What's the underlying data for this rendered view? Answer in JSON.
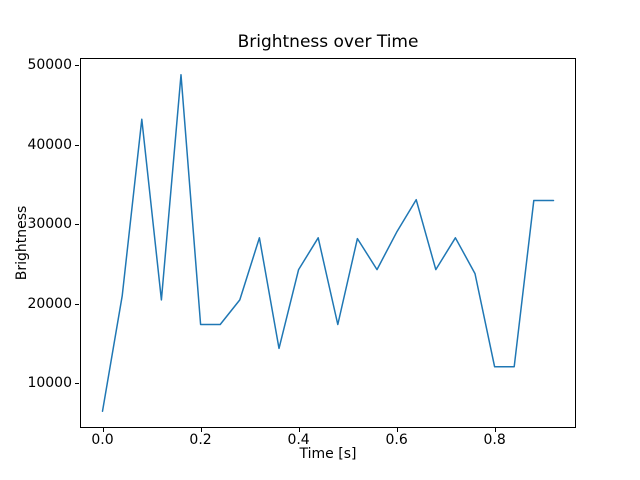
{
  "figure": {
    "background": "#ffffff",
    "axes_color": "#000000"
  },
  "chart_data": {
    "type": "line",
    "title": "Brightness over Time",
    "xlabel": "Time [s]",
    "ylabel": "Brightness",
    "line_color": "#1f77b4",
    "grid": false,
    "legend": null,
    "x": [
      0.0,
      0.04,
      0.08,
      0.12,
      0.16,
      0.2,
      0.24,
      0.28,
      0.32,
      0.36,
      0.4,
      0.44,
      0.48,
      0.52,
      0.56,
      0.6,
      0.64,
      0.68,
      0.72,
      0.76,
      0.8,
      0.84,
      0.88,
      0.92
    ],
    "values": [
      6500,
      21000,
      43200,
      20500,
      48800,
      17400,
      17400,
      20500,
      28300,
      14400,
      24300,
      28300,
      17400,
      28200,
      24300,
      29000,
      33100,
      24300,
      28300,
      23800,
      12100,
      12100,
      33000,
      33000
    ],
    "xticks": {
      "values": [
        0.0,
        0.2,
        0.4,
        0.6,
        0.8
      ],
      "labels": [
        "0.0",
        "0.2",
        "0.4",
        "0.6",
        "0.8"
      ]
    },
    "yticks": {
      "values": [
        10000,
        20000,
        30000,
        40000,
        50000
      ],
      "labels": [
        "10000",
        "20000",
        "30000",
        "40000",
        "50000"
      ]
    },
    "xlim": [
      -0.046,
      0.966
    ],
    "ylim": [
      4385,
      50915
    ]
  }
}
